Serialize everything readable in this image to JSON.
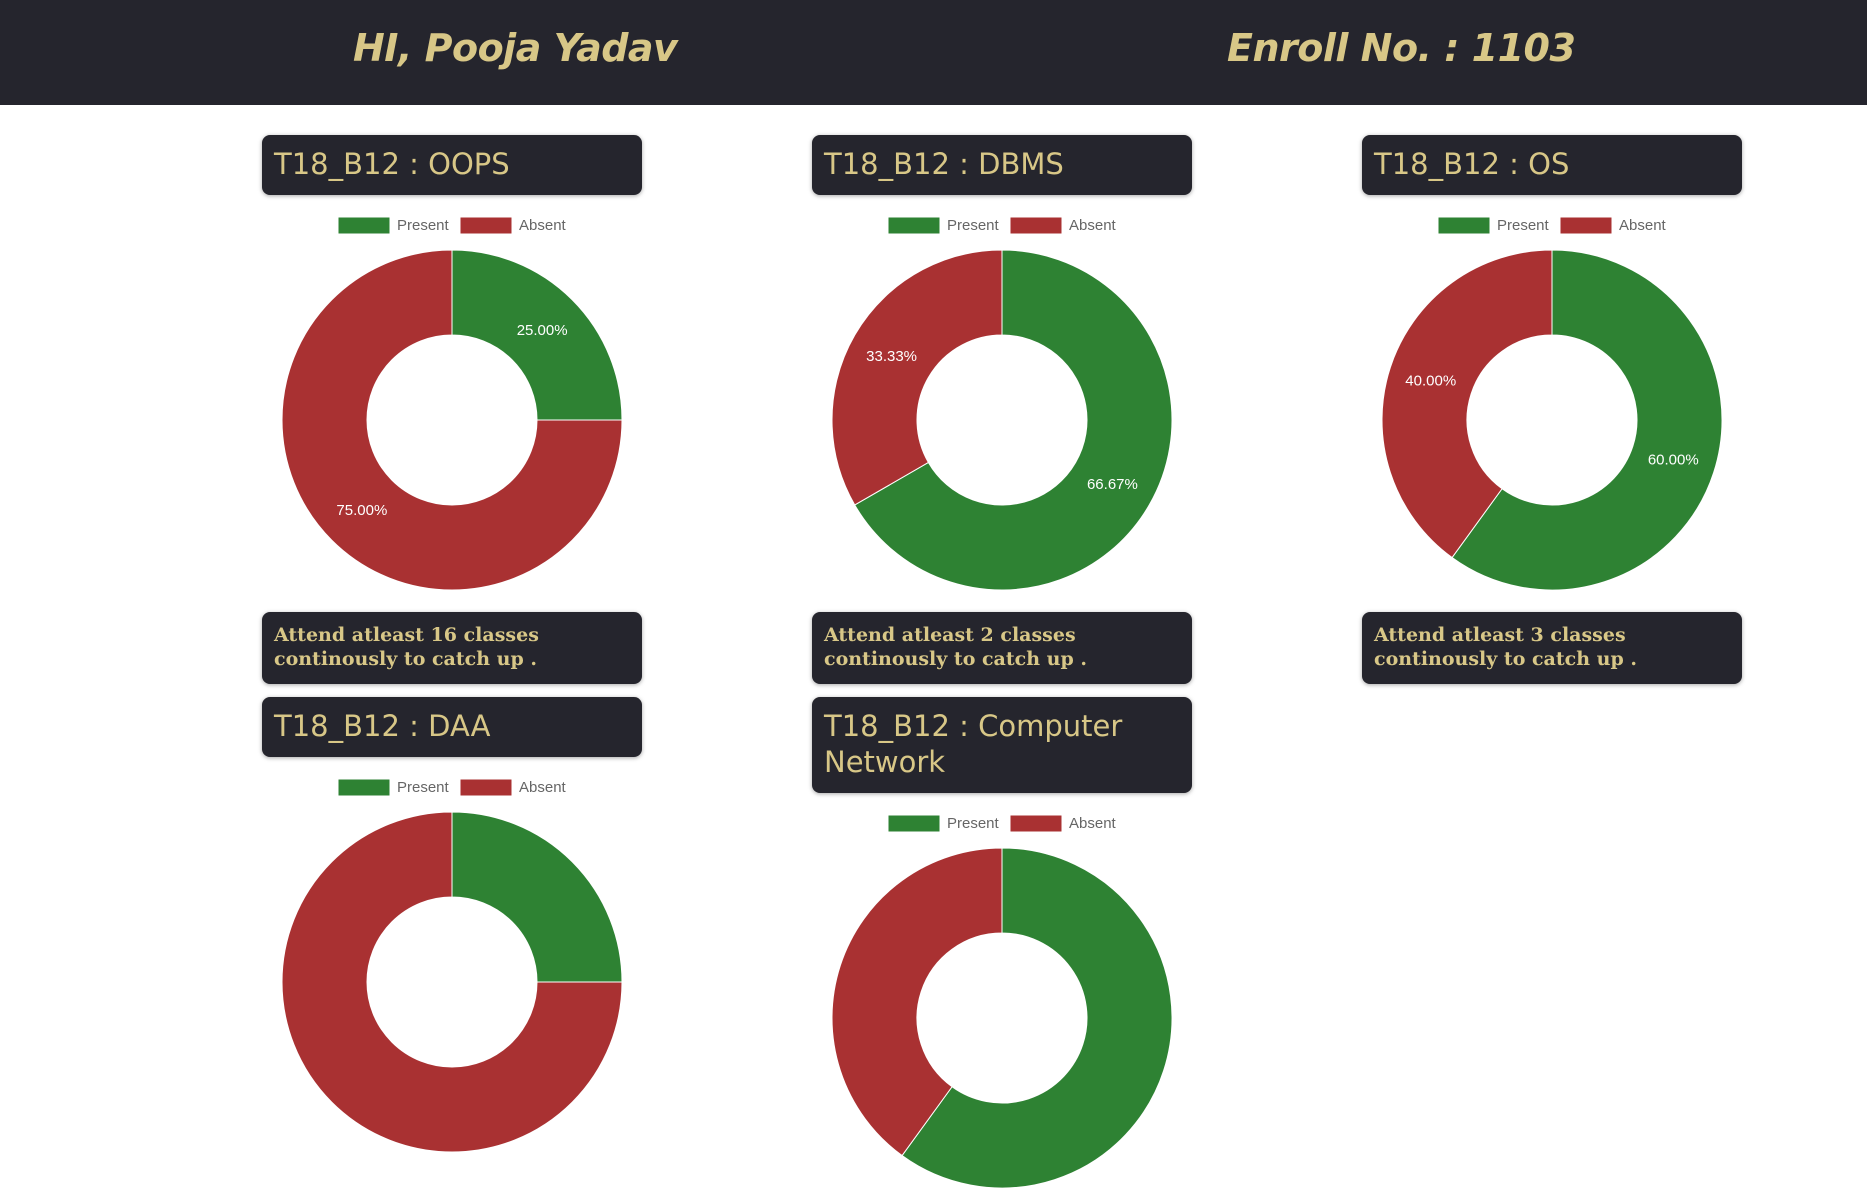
{
  "header": {
    "greeting": "HI, Pooja Yadav",
    "enroll": "Enroll No. : 1103"
  },
  "colors": {
    "present": "#2e8233",
    "absent": "#a93132",
    "header_bg": "#25252d",
    "accent_text": "#d8c787"
  },
  "cards": [
    {
      "title": "T18_B12 : OOPS",
      "note": "Attend atleast 16 classes continously to catch up .",
      "chart_data": {
        "type": "pie",
        "categories": [
          "Present",
          "Absent"
        ],
        "values": [
          25,
          75
        ],
        "labels": [
          "25.00%",
          "75.00%"
        ],
        "legend": "top"
      }
    },
    {
      "title": "T18_B12 : DBMS",
      "note": "Attend atleast 2 classes continously to catch up .",
      "chart_data": {
        "type": "pie",
        "categories": [
          "Present",
          "Absent"
        ],
        "values": [
          66.67,
          33.33
        ],
        "labels": [
          "66.67%",
          "33.33%"
        ],
        "legend": "top"
      }
    },
    {
      "title": "T18_B12 : OS",
      "note": "Attend atleast 3 classes continously to catch up .",
      "chart_data": {
        "type": "pie",
        "categories": [
          "Present",
          "Absent"
        ],
        "values": [
          60,
          40
        ],
        "labels": [
          "60.00%",
          "40.00%"
        ],
        "legend": "top"
      }
    },
    {
      "title": "T18_B12 : DAA",
      "note": "",
      "chart_data": {
        "type": "pie",
        "categories": [
          "Present",
          "Absent"
        ],
        "values": [
          25,
          75
        ],
        "labels": [
          "",
          ""
        ],
        "legend": "top"
      }
    },
    {
      "title": "T18_B12 : Computer Network",
      "note": "",
      "chart_data": {
        "type": "pie",
        "categories": [
          "Present",
          "Absent"
        ],
        "values": [
          60,
          40
        ],
        "labels": [
          "",
          ""
        ],
        "legend": "top"
      }
    }
  ]
}
